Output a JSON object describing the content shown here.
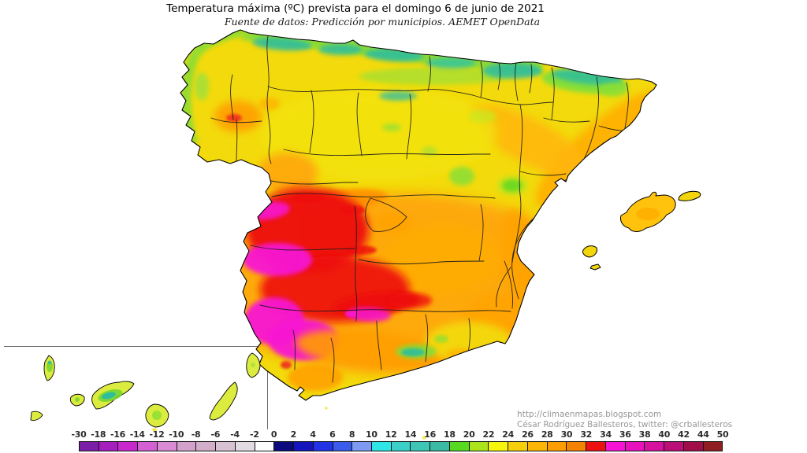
{
  "title": "Temperatura máxima (ºC) prevista para el domingo 6 de junio de 2021",
  "subtitle": "Fuente de datos: Predicción por municipios. AEMET OpenData",
  "credits": {
    "url": "http://climaenmapas.blogspot.com",
    "author": "César Rodríguez Ballesteros, twitter: @crballesteros"
  },
  "colorbar": {
    "tick_labels": [
      "-30",
      "-18",
      "-16",
      "-14",
      "-12",
      "-10",
      "-8",
      "-6",
      "-4",
      "-2",
      "0",
      "2",
      "4",
      "6",
      "8",
      "10",
      "12",
      "14",
      "16",
      "18",
      "20",
      "22",
      "24",
      "26",
      "28",
      "30",
      "32",
      "34",
      "36",
      "38",
      "40",
      "42",
      "44",
      "50"
    ],
    "cell_colors": [
      "#7B1FA8",
      "#A51EBE",
      "#C928CE",
      "#D460D4",
      "#D98CD4",
      "#D4A0CC",
      "#D2AECB",
      "#D6C2D2",
      "#E2DCE2",
      "#FDFDFD",
      "#0B0B7E",
      "#1515BE",
      "#2233E6",
      "#3B5BEA",
      "#7E9AF2",
      "#2FE6E6",
      "#3BCFC7",
      "#3DC6B6",
      "#3BBAA4",
      "#57D821",
      "#ACE41C",
      "#F4F40C",
      "#F7CE0A",
      "#FCB405",
      "#FC9E03",
      "#F58303",
      "#EE1111",
      "#F713D3",
      "#E712BE",
      "#D5119E",
      "#BB0F78",
      "#A00D49",
      "#8F1D22"
    ]
  },
  "map": {
    "accent_hot": "#F713D3",
    "accent_warm": "#EE1111",
    "base_yellow": "#F3DA0C",
    "cool_teal": "#2FBD9D"
  }
}
